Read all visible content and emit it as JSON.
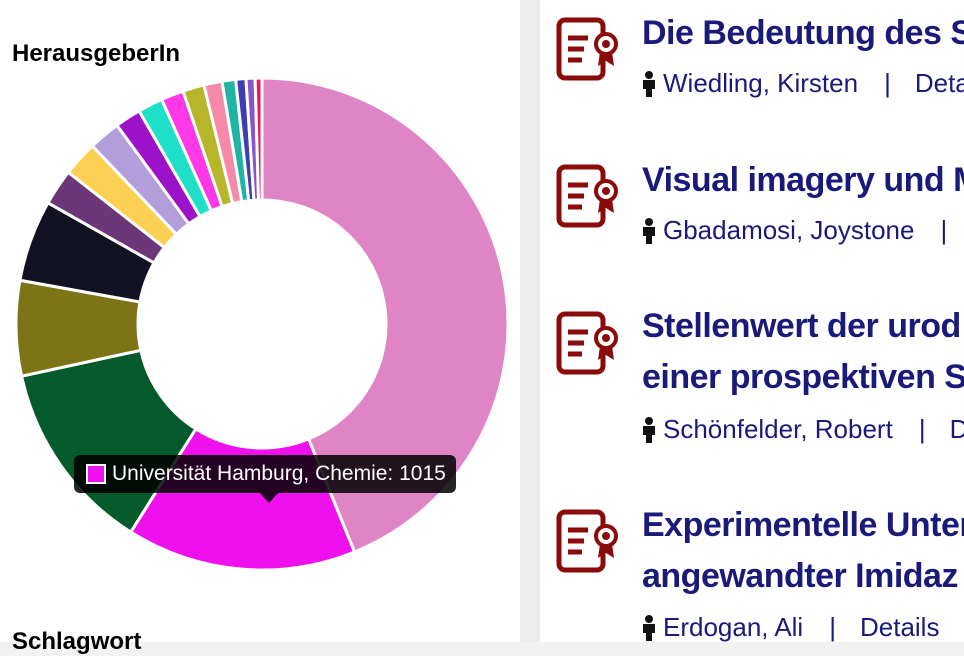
{
  "facets": {
    "publisher_heading": "HerausgeberIn",
    "next_heading": "Schlagwort"
  },
  "chart_data": {
    "type": "pie",
    "title": "HerausgeberIn",
    "donut": true,
    "slices": [
      {
        "color": "#df84c4",
        "value": 2950
      },
      {
        "color": "#ee11ee",
        "value": 1015
      },
      {
        "color": "#045a2b",
        "value": 850
      },
      {
        "color": "#7d7317",
        "value": 420
      },
      {
        "color": "#111122",
        "value": 360
      },
      {
        "color": "#6b3779",
        "value": 160
      },
      {
        "color": "#fbd053",
        "value": 155
      },
      {
        "color": "#b39ddb",
        "value": 140
      },
      {
        "color": "#9c12c8",
        "value": 115
      },
      {
        "color": "#1ee0c8",
        "value": 110
      },
      {
        "color": "#ff38e8",
        "value": 100
      },
      {
        "color": "#b7b52a",
        "value": 95
      },
      {
        "color": "#f789a8",
        "value": 80
      },
      {
        "color": "#1fb5a5",
        "value": 60
      },
      {
        "color": "#3e3eb1",
        "value": 45
      },
      {
        "color": "#8855cc",
        "value": 40
      },
      {
        "color": "#e8185c",
        "value": 30
      }
    ],
    "tooltip": {
      "label": "Universität Hamburg, Chemie: 1015",
      "color": "#ee11ee"
    }
  },
  "results": [
    {
      "title_lines": [
        "Die Bedeutung des S"
      ],
      "author": "Wiedling, Kirsten",
      "separator": "|",
      "link": "Deta"
    },
    {
      "title_lines": [
        "Visual imagery und M"
      ],
      "author": "Gbadamosi, Joystone",
      "separator": "|",
      "link": ""
    },
    {
      "title_lines": [
        "Stellenwert der urod",
        "einer prospektiven S"
      ],
      "author": "Schönfelder, Robert",
      "separator": "|",
      "link": "De"
    },
    {
      "title_lines": [
        "Experimentelle Unter",
        "angewandter Imidaz"
      ],
      "author": "Erdogan, Ali",
      "separator": "|",
      "link": "Details"
    }
  ],
  "icons": {
    "document": "document-award-icon",
    "person": "person-icon"
  },
  "colors": {
    "title": "#1a1a7a",
    "icon": "#8b0a0a"
  }
}
